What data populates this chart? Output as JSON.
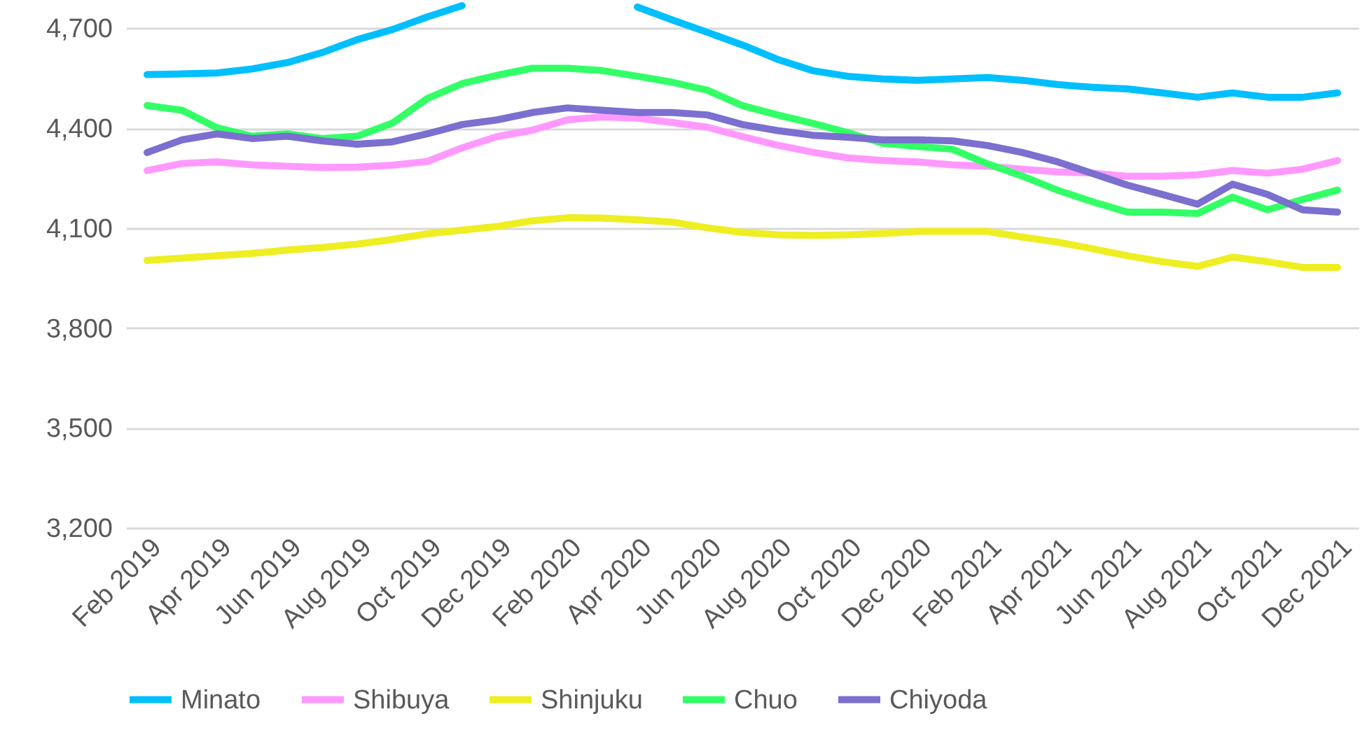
{
  "chart_data": {
    "type": "line",
    "categories": [
      "Feb 2019",
      null,
      "Apr 2019",
      null,
      "Jun 2019",
      null,
      "Aug 2019",
      null,
      "Oct 2019",
      null,
      "Dec 2019",
      null,
      "Feb 2020",
      null,
      "Apr 2020",
      null,
      "Jun 2020",
      null,
      "Aug 2020",
      null,
      "Oct 2020",
      null,
      "Dec 2020",
      null,
      "Feb 2021",
      null,
      "Apr 2021",
      null,
      "Jun 2021",
      null,
      "Aug 2021",
      null,
      "Oct 2021",
      null,
      "Dec 2021"
    ],
    "ylim": [
      3200,
      4785
    ],
    "yticks": [
      {
        "value": 3200,
        "label": "3,200"
      },
      {
        "value": 3500,
        "label": "3,500"
      },
      {
        "value": 3800,
        "label": "3,800"
      },
      {
        "value": 4100,
        "label": "4,100"
      },
      {
        "value": 4400,
        "label": "4,400"
      },
      {
        "value": 4700,
        "label": "4,700"
      }
    ],
    "grid": "y",
    "legend": "bottom",
    "marker": "none",
    "line_style": "solid",
    "series": [
      {
        "name": "Minato",
        "color": "#00bfff",
        "values": [
          4561,
          4563,
          4566,
          4578,
          4597,
          4627,
          4666,
          4696,
          4734,
          4768,
          null,
          null,
          null,
          null,
          4764,
          4725,
          4688,
          4650,
          4607,
          4573,
          4556,
          4548,
          4544,
          4548,
          4552,
          4544,
          4531,
          4523,
          4518,
          4506,
          4493,
          4506,
          4493,
          4493,
          4506
        ]
      },
      {
        "name": "Shibuya",
        "color": "#ff99ff",
        "values": [
          4273,
          4294,
          4299,
          4290,
          4286,
          4282,
          4283,
          4289,
          4300,
          4341,
          4375,
          4394,
          4425,
          4434,
          4430,
          4417,
          4403,
          4375,
          4349,
          4328,
          4311,
          4303,
          4299,
          4290,
          4286,
          4277,
          4269,
          4265,
          4256,
          4256,
          4260,
          4273,
          4265,
          4277,
          4303
        ]
      },
      {
        "name": "Shinjuku",
        "color": "#eeee22",
        "values": [
          4003,
          4010,
          4017,
          4024,
          4034,
          4042,
          4052,
          4066,
          4083,
          4094,
          4105,
          4122,
          4131,
          4130,
          4125,
          4118,
          4101,
          4087,
          4080,
          4078,
          4080,
          4084,
          4090,
          4090,
          4090,
          4073,
          4058,
          4038,
          4017,
          3999,
          3985,
          4013,
          3999,
          3982,
          3982
        ]
      },
      {
        "name": "Chuo",
        "color": "#33ff66",
        "values": [
          4468,
          4454,
          4401,
          4376,
          4383,
          4369,
          4376,
          4415,
          4489,
          4534,
          4559,
          4580,
          4580,
          4573,
          4556,
          4538,
          4514,
          4468,
          4440,
          4415,
          4387,
          4355,
          4345,
          4337,
          4293,
          4256,
          4214,
          4179,
          4148,
          4148,
          4144,
          4193,
          4155,
          4186,
          4214
        ]
      },
      {
        "name": "Chiyoda",
        "color": "#7b6fd0",
        "values": [
          4327,
          4365,
          4383,
          4369,
          4376,
          4362,
          4352,
          4359,
          4383,
          4411,
          4425,
          4447,
          4461,
          4454,
          4447,
          4447,
          4440,
          4411,
          4393,
          4379,
          4373,
          4365,
          4365,
          4362,
          4348,
          4327,
          4299,
          4264,
          4229,
          4201,
          4172,
          4232,
          4201,
          4155,
          4148
        ]
      }
    ]
  }
}
